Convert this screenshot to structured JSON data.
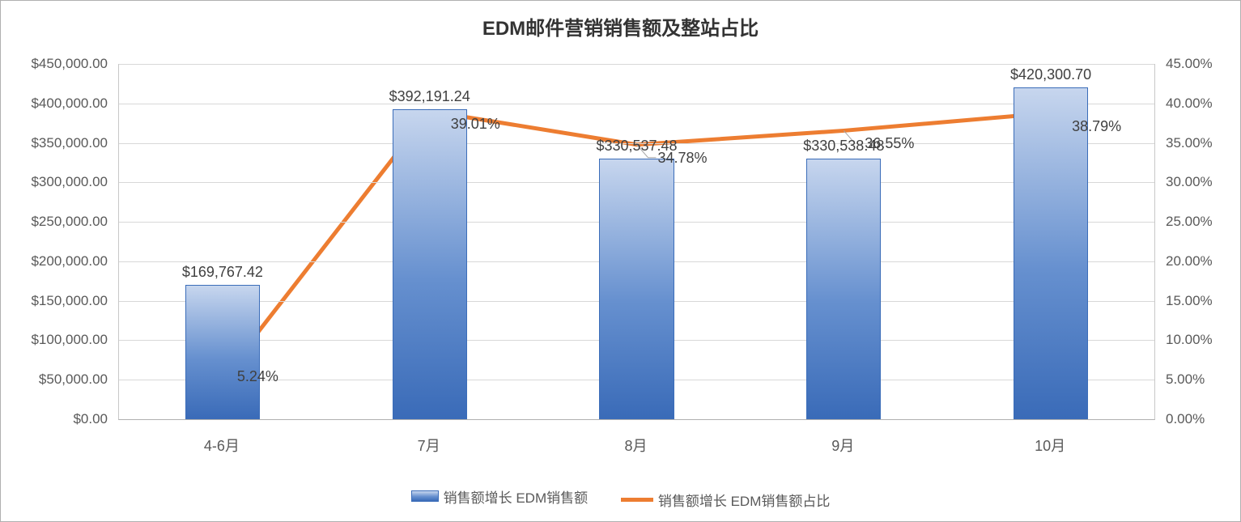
{
  "chart": {
    "type": "bar+line",
    "title": "EDM邮件营销销售额及整站占比",
    "title_fontsize": 24,
    "title_color": "#333333",
    "background_color": "#ffffff",
    "border_color": "#b0b0b0",
    "grid_color": "#d8d8d8",
    "axis_color": "#b0b0b0",
    "label_color": "#595959",
    "label_fontsize": 17,
    "x_label_fontsize": 18,
    "data_label_fontsize": 18,
    "categories": [
      "4-6月",
      "7月",
      "8月",
      "9月",
      "10月"
    ],
    "bars": {
      "series_name": "销售额增长 EDM销售额",
      "values": [
        169767.42,
        392191.24,
        330537.48,
        330538.48,
        420300.7
      ],
      "value_labels": [
        "$169,767.42",
        "$392,191.24",
        "$330,537.48",
        "$330,538.48",
        "$420,300.70"
      ],
      "bar_color_top": "#c7d6ee",
      "bar_color_mid": "#6690cf",
      "bar_color_bottom": "#3a6bb8",
      "bar_border_color": "#3b6db9",
      "bar_width_fraction": 0.36
    },
    "line": {
      "series_name": "销售额增长 EDM销售额占比",
      "values_pct": [
        5.24,
        39.01,
        34.78,
        36.55,
        38.79
      ],
      "value_labels": [
        "5.24%",
        "39.01%",
        "34.78%",
        "36.55%",
        "38.79%"
      ],
      "color": "#ed7d31",
      "width": 5
    },
    "y_left": {
      "min": 0,
      "max": 450000,
      "step": 50000,
      "tick_labels": [
        "$0.00",
        "$50,000.00",
        "$100,000.00",
        "$150,000.00",
        "$200,000.00",
        "$250,000.00",
        "$300,000.00",
        "$350,000.00",
        "$400,000.00",
        "$450,000.00"
      ]
    },
    "y_right": {
      "min": 0,
      "max": 45,
      "step": 5,
      "tick_labels": [
        "0.00%",
        "5.00%",
        "10.00%",
        "15.00%",
        "20.00%",
        "25.00%",
        "30.00%",
        "35.00%",
        "40.00%",
        "45.00%"
      ]
    },
    "legend": {
      "bar_label": "销售额增长 EDM销售额",
      "line_label": "销售额增长 EDM销售额占比"
    },
    "leader_line_color": "#a6a6a6"
  }
}
